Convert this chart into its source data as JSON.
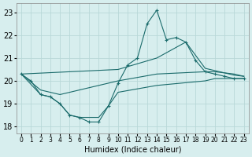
{
  "background_color": "#d7eeee",
  "grid_color": "#b8d8d8",
  "line_color": "#1a6b6b",
  "xlabel": "Humidex (Indice chaleur)",
  "xlim": [
    -0.5,
    23.5
  ],
  "ylim": [
    17.7,
    23.4
  ],
  "yticks": [
    18,
    19,
    20,
    21,
    22,
    23
  ],
  "xticks": [
    0,
    1,
    2,
    3,
    4,
    5,
    6,
    7,
    8,
    9,
    10,
    11,
    12,
    13,
    14,
    15,
    16,
    17,
    18,
    19,
    20,
    21,
    22,
    23
  ],
  "series": [
    {
      "x": [
        0,
        1,
        2,
        3,
        4,
        5,
        6,
        7,
        8,
        9,
        10,
        11,
        12,
        13,
        14,
        15,
        16,
        17,
        18,
        19,
        20,
        21,
        22,
        23
      ],
      "y": [
        20.3,
        20.0,
        19.4,
        19.3,
        19.0,
        18.5,
        18.4,
        18.2,
        18.2,
        18.9,
        19.9,
        20.7,
        21.0,
        22.5,
        23.1,
        21.8,
        21.9,
        21.7,
        20.9,
        20.4,
        20.3,
        20.2,
        20.1,
        20.1
      ],
      "marker": "+"
    },
    {
      "x": [
        0,
        2,
        3,
        4,
        5,
        6,
        7,
        8,
        9,
        10,
        14,
        19,
        20,
        21,
        22,
        23
      ],
      "y": [
        20.3,
        19.4,
        19.3,
        19.0,
        18.5,
        18.4,
        18.4,
        18.4,
        18.9,
        19.5,
        19.8,
        20.0,
        20.1,
        20.1,
        20.1,
        20.1
      ],
      "marker": null
    },
    {
      "x": [
        0,
        2,
        3,
        4,
        10,
        14,
        19,
        20,
        21,
        22,
        23
      ],
      "y": [
        20.3,
        19.6,
        19.5,
        19.4,
        20.0,
        20.3,
        20.4,
        20.4,
        20.35,
        20.3,
        20.2
      ],
      "marker": null
    },
    {
      "x": [
        0,
        10,
        14,
        17,
        19,
        20,
        21,
        22,
        23
      ],
      "y": [
        20.3,
        20.5,
        21.0,
        21.7,
        20.55,
        20.45,
        20.35,
        20.25,
        20.2
      ],
      "marker": null
    }
  ]
}
